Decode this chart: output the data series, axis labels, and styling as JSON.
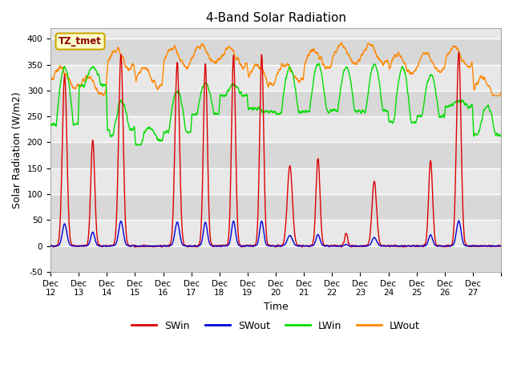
{
  "title": "4-Band Solar Radiation",
  "xlabel": "Time",
  "ylabel": "Solar Radiation (W/m2)",
  "ylim": [
    -50,
    420
  ],
  "annotation": "TZ_tmet",
  "legend": [
    "SWin",
    "SWout",
    "LWin",
    "LWout"
  ],
  "colors": {
    "SWin": "#dd0000",
    "SWout": "#0000dd",
    "LWin": "#00dd00",
    "LWout": "#ff8800"
  },
  "xtick_labels": [
    "Dec 12",
    "Dec 13",
    "Dec 14",
    "Dec 15",
    "Dec 16",
    "Dec 17",
    "Dec 18",
    "Dec 19",
    "Dec 20",
    "Dec 21",
    "Dec 22",
    "Dec 23",
    "Dec 24",
    "Dec 25",
    "Dec 26",
    "Dec 27"
  ],
  "ytick_labels": [
    -50,
    0,
    50,
    100,
    150,
    200,
    250,
    300,
    350,
    400
  ],
  "title_fontsize": 11,
  "axis_label_fontsize": 9,
  "tick_fontsize": 7.5,
  "linewidth": 1.0,
  "SWin_peaks": [
    330,
    205,
    370,
    0,
    355,
    353,
    370,
    370,
    155,
    170,
    25,
    125,
    0,
    165,
    375,
    0
  ],
  "SWin_widths": [
    0.08,
    0.07,
    0.08,
    0,
    0.08,
    0.07,
    0.07,
    0.07,
    0.09,
    0.07,
    0.05,
    0.08,
    0,
    0.07,
    0.08,
    0
  ],
  "LWin_base": [
    235,
    310,
    225,
    205,
    220,
    255,
    290,
    265,
    260,
    260,
    260,
    260,
    240,
    250,
    270,
    215
  ],
  "LWin_top": [
    345,
    345,
    280,
    228,
    300,
    315,
    310,
    265,
    345,
    350,
    345,
    350,
    345,
    330,
    280,
    270
  ],
  "LWout_base": [
    325,
    310,
    360,
    325,
    365,
    370,
    365,
    330,
    335,
    360,
    370,
    370,
    350,
    355,
    365,
    305
  ]
}
